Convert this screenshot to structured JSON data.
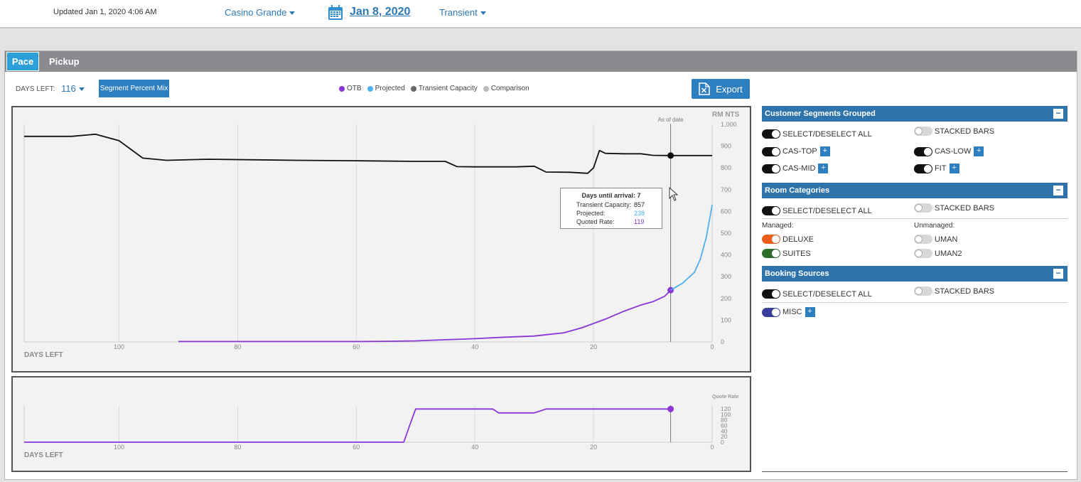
{
  "header": {
    "updated": "Updated Jan 1, 2020 4:06 AM",
    "property": "Casino Grande",
    "date": "Jan 8, 2020",
    "segment": "Transient"
  },
  "tabs": [
    {
      "label": "Pace"
    },
    {
      "label": "Pickup"
    }
  ],
  "toolbar": {
    "days_left_label": "DAYS LEFT:",
    "days_left_value": "116",
    "segment_mix_button": "Segment Percent Mix",
    "export_label": "Export"
  },
  "legend": [
    {
      "label": "OTB",
      "color": "#8a35d6"
    },
    {
      "label": "Projected",
      "color": "#4fb0ef"
    },
    {
      "label": "Transient Capacity",
      "color": "#666666"
    },
    {
      "label": "Comparison",
      "color": "#bbbbbb"
    }
  ],
  "tooltip": {
    "title": "Days until arrival: 7",
    "rows": [
      {
        "label": "Transient Capacity:",
        "value": "857",
        "color": "#222222"
      },
      {
        "label": "Projected:",
        "value": "238",
        "color": "#4fb0ef"
      },
      {
        "label": "Quoted Rate:",
        "value": "119",
        "color": "#7a35c6"
      }
    ]
  },
  "chart_data": [
    {
      "type": "line",
      "ylabel": "RM NTS",
      "xlabel": "DAYS LEFT",
      "annotation": "As of date",
      "marker_x": 7,
      "xlim": [
        116,
        0
      ],
      "ylim": [
        0,
        1000
      ],
      "x_ticks": [
        "100",
        "80",
        "60",
        "40",
        "20",
        "0"
      ],
      "y_ticks": [
        "0",
        "100",
        "200",
        "300",
        "400",
        "500",
        "600",
        "700",
        "800",
        "900",
        "1,000"
      ],
      "series": [
        {
          "name": "Transient Capacity",
          "color": "#111111",
          "x": [
            116,
            108,
            104,
            100,
            96,
            92,
            85,
            70,
            60,
            50,
            45,
            43,
            40,
            33,
            30,
            28,
            24,
            21,
            20,
            19,
            18,
            15,
            12,
            10,
            7,
            0
          ],
          "y": [
            945,
            945,
            955,
            925,
            845,
            835,
            840,
            835,
            833,
            830,
            830,
            806,
            805,
            805,
            808,
            781,
            780,
            775,
            800,
            880,
            867,
            865,
            865,
            858,
            857,
            857
          ]
        },
        {
          "name": "OTB",
          "color": "#8a35d6",
          "x": [
            90,
            70,
            60,
            55,
            50,
            45,
            40,
            35,
            30,
            25,
            22,
            20,
            18,
            15,
            12,
            10,
            8,
            7
          ],
          "y": [
            2,
            2,
            2,
            3,
            5,
            10,
            15,
            22,
            27,
            42,
            65,
            85,
            105,
            140,
            170,
            185,
            210,
            238
          ]
        },
        {
          "name": "Projected",
          "color": "#4fb0ef",
          "x": [
            7,
            5,
            3,
            2,
            1,
            0
          ],
          "y": [
            238,
            270,
            320,
            380,
            480,
            630
          ]
        }
      ]
    },
    {
      "type": "line",
      "ylabel": "Quote Rate",
      "xlabel": "DAYS LEFT",
      "xlim": [
        116,
        0
      ],
      "ylim": [
        0,
        130
      ],
      "x_ticks": [
        "100",
        "80",
        "60",
        "40",
        "20",
        "0"
      ],
      "y_ticks": [
        "0",
        "20",
        "40",
        "60",
        "80",
        "100",
        "120"
      ],
      "series": [
        {
          "name": "Quote Rate",
          "color": "#8a35d6",
          "x": [
            116,
            52,
            51,
            50,
            40,
            37,
            36,
            30,
            29,
            28,
            20,
            7
          ],
          "y": [
            0,
            0,
            60,
            119,
            119,
            119,
            105,
            105,
            112,
            119,
            119,
            119
          ]
        }
      ]
    }
  ],
  "right_panel": {
    "customer_segments": {
      "title": "Customer Segments Grouped",
      "select_all": "SELECT/DESELECT ALL",
      "stacked": "STACKED BARS",
      "items": [
        {
          "label": "CAS-TOP"
        },
        {
          "label": "CAS-LOW"
        },
        {
          "label": "CAS-MID"
        },
        {
          "label": "FIT"
        }
      ]
    },
    "room_categories": {
      "title": "Room Categories",
      "select_all": "SELECT/DESELECT ALL",
      "stacked": "STACKED BARS",
      "managed_label": "Managed:",
      "unmanaged_label": "Unmanaged:",
      "managed": [
        {
          "label": "DELUXE",
          "color": "#e8601c"
        },
        {
          "label": "SUITES",
          "color": "#2c6e2a"
        }
      ],
      "unmanaged": [
        {
          "label": "UMAN"
        },
        {
          "label": "UMAN2"
        }
      ]
    },
    "booking_sources": {
      "title": "Booking Sources",
      "select_all": "SELECT/DESELECT ALL",
      "stacked": "STACKED BARS",
      "items": [
        {
          "label": "MISC",
          "color": "#3a3f9e"
        }
      ]
    }
  }
}
